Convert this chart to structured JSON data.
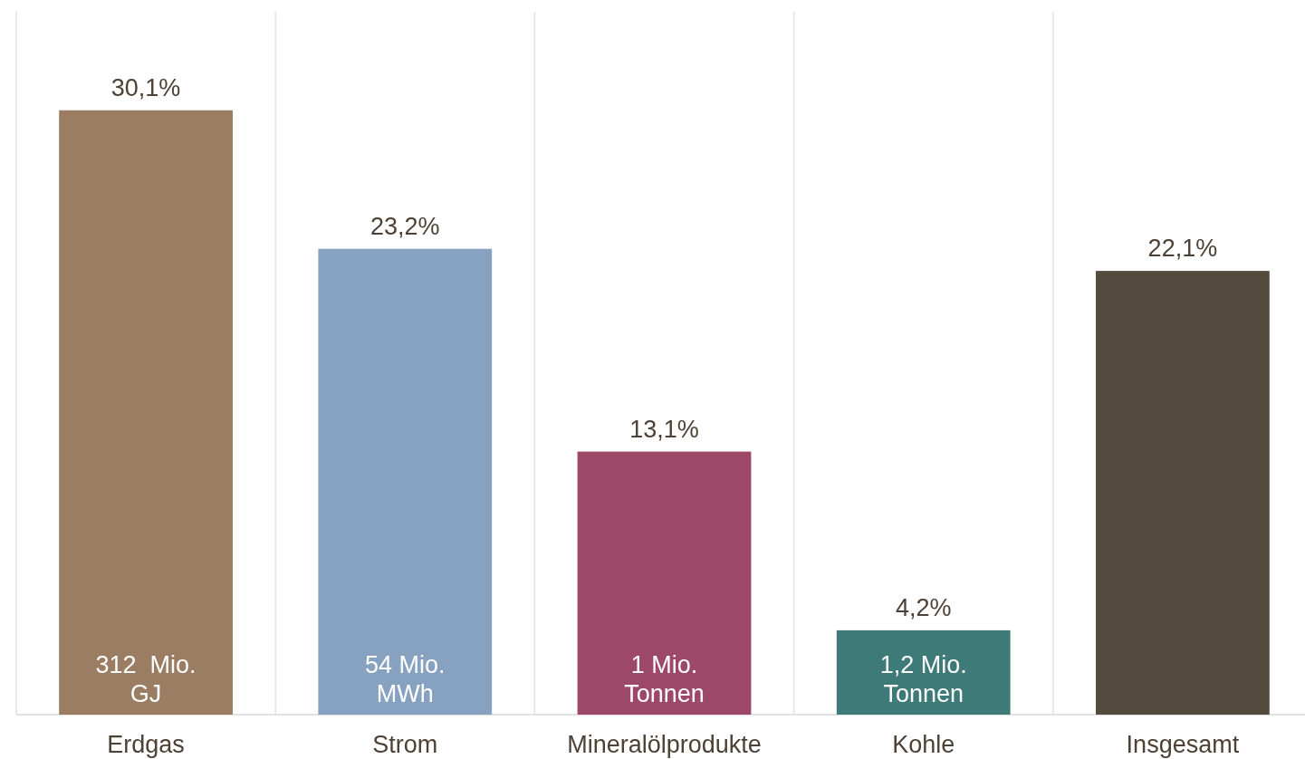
{
  "chart_data": {
    "type": "bar",
    "categories": [
      "Erdgas",
      "Strom",
      "Mineralölprodukte",
      "Kohle",
      "Insgesamt"
    ],
    "values": [
      30.1,
      23.2,
      13.1,
      4.2,
      22.1
    ],
    "colors": [
      "#9a7d62",
      "#87a2c1",
      "#9e4868",
      "#3e7b78",
      "#554a3e"
    ],
    "value_labels": [
      "30,1%",
      "23,2%",
      "13,1%",
      "4,2%",
      "22,1%"
    ],
    "grid": "x",
    "annotations": [
      "312  Mio.\nGJ",
      "54 Mio.\nMWh",
      "1 Mio.\nTonnen",
      "1,2 Mio.\nTonnen"
    ]
  }
}
